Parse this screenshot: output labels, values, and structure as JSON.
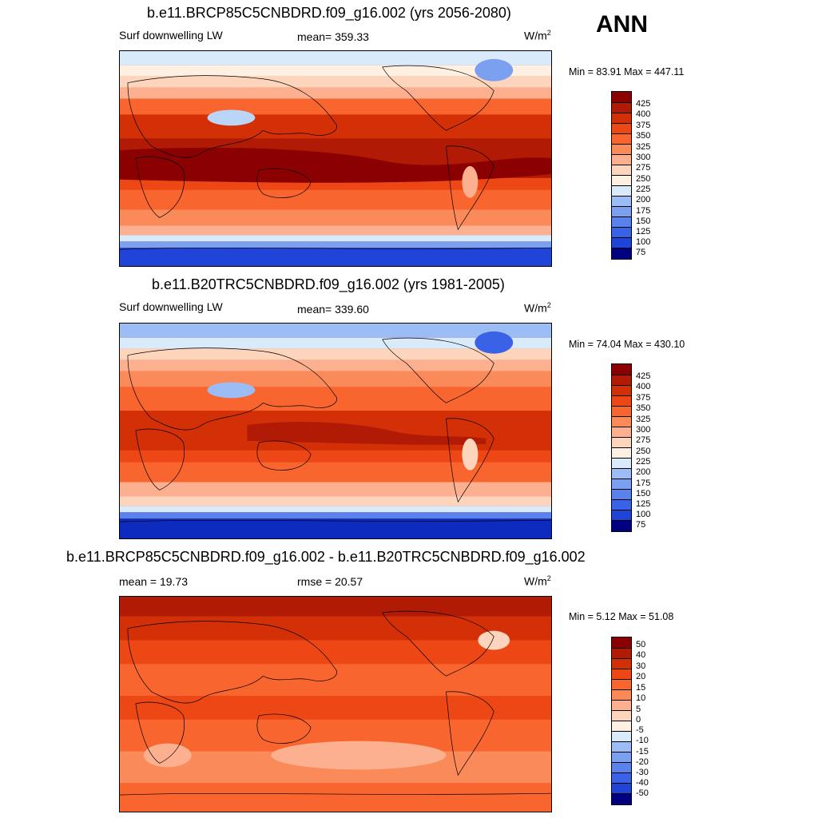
{
  "season": "ANN",
  "panels": [
    {
      "title": "b.e11.BRCP85C5CNBDRD.f09_g16.002 (yrs 2056-2080)",
      "left_label": "Surf downwelling LW",
      "center_label": "mean= 359.33",
      "units": "W/m",
      "units_exp": "2",
      "minmax": "Min =  83.91 Max = 447.11",
      "colorbar_labels": [
        "425",
        "400",
        "375",
        "350",
        "325",
        "300",
        "275",
        "250",
        "225",
        "200",
        "175",
        "150",
        "125",
        "100",
        "75"
      ]
    },
    {
      "title": "b.e11.B20TRC5CNBDRD.f09_g16.002 (yrs 1981-2005)",
      "left_label": "Surf downwelling LW",
      "center_label": "mean= 339.60",
      "units": "W/m",
      "units_exp": "2",
      "minmax": "Min =  74.04 Max = 430.10",
      "colorbar_labels": [
        "425",
        "400",
        "375",
        "350",
        "325",
        "300",
        "275",
        "250",
        "225",
        "200",
        "175",
        "150",
        "125",
        "100",
        "75"
      ]
    },
    {
      "title": "b.e11.BRCP85C5CNBDRD.f09_g16.002 - b.e11.B20TRC5CNBDRD.f09_g16.002",
      "left_label": "mean =  19.73",
      "center_label": "rmse =  20.57",
      "units": "W/m",
      "units_exp": "2",
      "minmax": "Min =   5.12 Max =  51.08",
      "colorbar_labels": [
        "50",
        "40",
        "30",
        "20",
        "15",
        "10",
        "5",
        "0",
        "-5",
        "-10",
        "-15",
        "-20",
        "-30",
        "-40",
        "-50"
      ]
    }
  ],
  "colors": {
    "scale": [
      "#8b0000",
      "#b11a04",
      "#d43008",
      "#ec4714",
      "#f8652e",
      "#fb8a5a",
      "#fcb08f",
      "#fdd5bd",
      "#fff0e2",
      "#d9ebfb",
      "#bad5f7",
      "#9bbcf4",
      "#7aa0ef",
      "#5a82ec",
      "#3a62e6",
      "#1f44d7",
      "#0d2cbf",
      "#001c9e",
      "#000080"
    ]
  }
}
